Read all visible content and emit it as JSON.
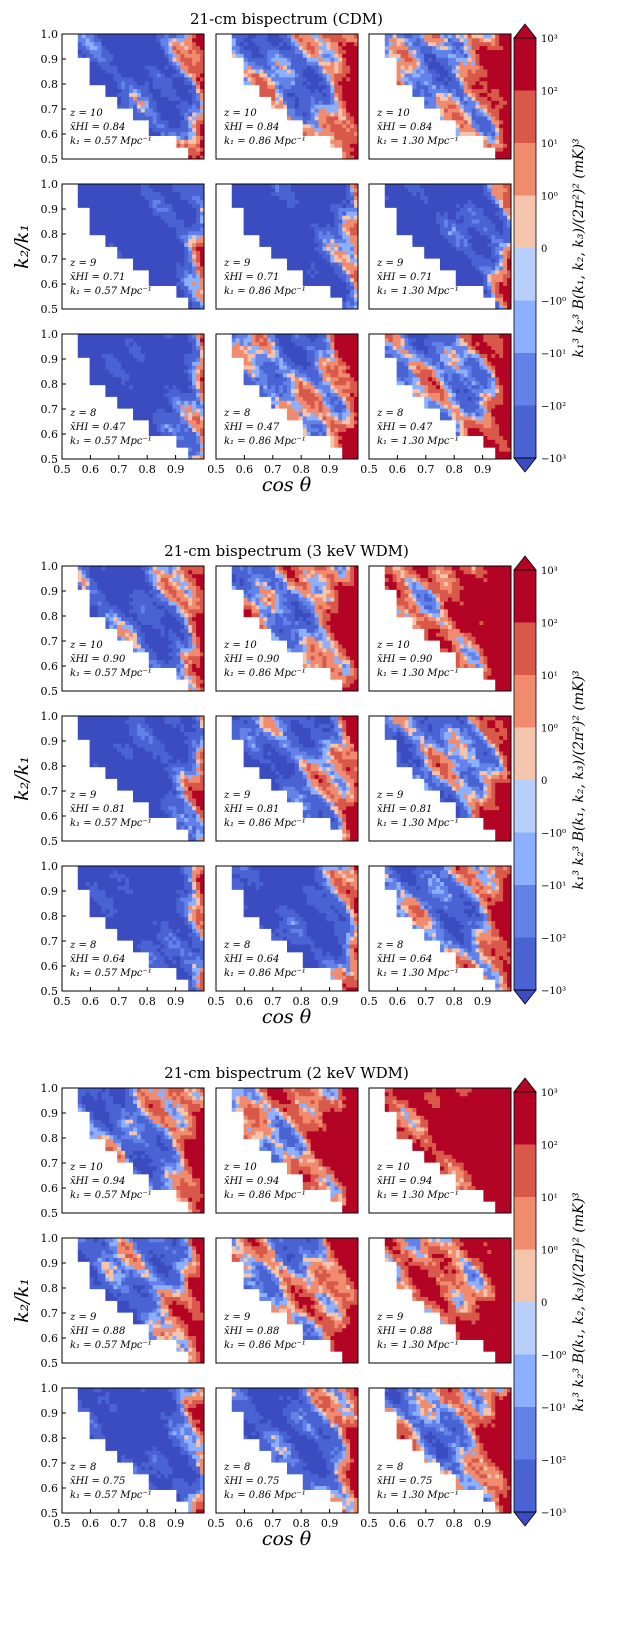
{
  "colors": {
    "neg3": "#3b4cc0",
    "neg2": "#4a63d3",
    "neg1": "#6282ea",
    "neg0": "#8db0fe",
    "zero": "#b7cff9",
    "pos0": "#f4c4ad",
    "pos1": "#f08b6e",
    "pos2": "#d8584a",
    "pos3": "#b40426",
    "white": "#ffffff"
  },
  "blocks": [
    {
      "title": "21-cm bispectrum (CDM)",
      "ylabel": "k₂/k₁",
      "xlabel": "cos θ",
      "cbar_label": "k₁³ k₂³ B(k₁, k₂, k₃)/(2π²)² (mK)³",
      "cbar_ticks": [
        "10³",
        "10²",
        "10¹",
        "10⁰",
        "0",
        "−10⁰",
        "−10¹",
        "−10²",
        "−10³"
      ],
      "panels": [
        {
          "z": "z = 10",
          "xhi": "x̄HI = 0.84",
          "k1": "k₁ = 0.57 Mpc⁻¹"
        },
        {
          "z": "z = 10",
          "xhi": "x̄HI = 0.84",
          "k1": "k₁ = 0.86 Mpc⁻¹"
        },
        {
          "z": "z = 10",
          "xhi": "x̄HI = 0.84",
          "k1": "k₁ = 1.30 Mpc⁻¹"
        },
        {
          "z": "z = 9",
          "xhi": "x̄HI = 0.71",
          "k1": "k₁ = 0.57 Mpc⁻¹"
        },
        {
          "z": "z = 9",
          "xhi": "x̄HI = 0.71",
          "k1": "k₁ = 0.86 Mpc⁻¹"
        },
        {
          "z": "z = 9",
          "xhi": "x̄HI = 0.71",
          "k1": "k₁ = 1.30 Mpc⁻¹"
        },
        {
          "z": "z = 8",
          "xhi": "x̄HI = 0.47",
          "k1": "k₁ = 0.57 Mpc⁻¹"
        },
        {
          "z": "z = 8",
          "xhi": "x̄HI = 0.47",
          "k1": "k₁ = 0.86 Mpc⁻¹"
        },
        {
          "z": "z = 8",
          "xhi": "x̄HI = 0.47",
          "k1": "k₁ = 1.30 Mpc⁻¹"
        }
      ]
    },
    {
      "title": "21-cm bispectrum (3 keV WDM)",
      "ylabel": "k₂/k₁",
      "xlabel": "cos θ",
      "cbar_label": "k₁³ k₂³ B(k₁, k₂, k₃)/(2π²)² (mK)³",
      "cbar_ticks": [
        "10³",
        "10²",
        "10¹",
        "10⁰",
        "0",
        "−10⁰",
        "−10¹",
        "−10²",
        "−10³"
      ],
      "panels": [
        {
          "z": "z = 10",
          "xhi": "x̄HI = 0.90",
          "k1": "k₁ = 0.57 Mpc⁻¹"
        },
        {
          "z": "z = 10",
          "xhi": "x̄HI = 0.90",
          "k1": "k₁ = 0.86 Mpc⁻¹"
        },
        {
          "z": "z = 10",
          "xhi": "x̄HI = 0.90",
          "k1": "k₁ = 1.30 Mpc⁻¹"
        },
        {
          "z": "z = 9",
          "xhi": "x̄HI = 0.81",
          "k1": "k₁ = 0.57 Mpc⁻¹"
        },
        {
          "z": "z = 9",
          "xhi": "x̄HI = 0.81",
          "k1": "k₁ = 0.86 Mpc⁻¹"
        },
        {
          "z": "z = 9",
          "xhi": "x̄HI = 0.81",
          "k1": "k₁ = 1.30 Mpc⁻¹"
        },
        {
          "z": "z = 8",
          "xhi": "x̄HI = 0.64",
          "k1": "k₁ = 0.57 Mpc⁻¹"
        },
        {
          "z": "z = 8",
          "xhi": "x̄HI = 0.64",
          "k1": "k₁ = 0.86 Mpc⁻¹"
        },
        {
          "z": "z = 8",
          "xhi": "x̄HI = 0.64",
          "k1": "k₁ = 1.30 Mpc⁻¹"
        }
      ]
    },
    {
      "title": "21-cm bispectrum (2 keV WDM)",
      "ylabel": "k₂/k₁",
      "xlabel": "cos θ",
      "cbar_label": "k₁³ k₂³ B(k₁, k₂, k₃)/(2π²)² (mK)³",
      "cbar_ticks": [
        "10³",
        "10²",
        "10¹",
        "10⁰",
        "0",
        "−10⁰",
        "−10¹",
        "−10²",
        "−10³"
      ],
      "panels": [
        {
          "z": "z = 10",
          "xhi": "x̄HI = 0.94",
          "k1": "k₁ = 0.57 Mpc⁻¹"
        },
        {
          "z": "z = 10",
          "xhi": "x̄HI = 0.94",
          "k1": "k₁ = 0.86 Mpc⁻¹"
        },
        {
          "z": "z = 10",
          "xhi": "x̄HI = 0.94",
          "k1": "k₁ = 1.30 Mpc⁻¹"
        },
        {
          "z": "z = 9",
          "xhi": "x̄HI = 0.88",
          "k1": "k₁ = 0.57 Mpc⁻¹"
        },
        {
          "z": "z = 9",
          "xhi": "x̄HI = 0.88",
          "k1": "k₁ = 0.86 Mpc⁻¹"
        },
        {
          "z": "z = 9",
          "xhi": "x̄HI = 0.88",
          "k1": "k₁ = 1.30 Mpc⁻¹"
        },
        {
          "z": "z = 8",
          "xhi": "x̄HI = 0.75",
          "k1": "k₁ = 0.57 Mpc⁻¹"
        },
        {
          "z": "z = 8",
          "xhi": "x̄HI = 0.75",
          "k1": "k₁ = 0.86 Mpc⁻¹"
        },
        {
          "z": "z = 8",
          "xhi": "x̄HI = 0.75",
          "k1": "k₁ = 1.30 Mpc⁻¹"
        }
      ]
    }
  ],
  "chart_data": [
    {
      "type": "heatmap",
      "title": "21-cm bispectrum (CDM)",
      "xlabel": "cos θ",
      "ylabel": "k₂/k₁",
      "xlim": [
        0.5,
        1.0
      ],
      "ylim": [
        0.5,
        1.0
      ],
      "xticks": [
        "0.5",
        "0.6",
        "0.7",
        "0.8",
        "0.9"
      ],
      "yticks": [
        "0.5",
        "0.6",
        "0.7",
        "0.8",
        "0.9",
        "1.0"
      ],
      "colorbar": "symmetric log, −10³ to 10³ (mK)³",
      "panels_grid": "3 rows (z = 10, 9, 8) × 3 columns (k₁ = 0.57, 0.86, 1.30 Mpc⁻¹)",
      "dominant_sign": [
        [
          "mixed",
          "mixed",
          "mostly negative, positive near cos θ ≈ 1"
        ],
        [
          "negative",
          "negative",
          "negative"
        ],
        [
          "negative",
          "mixed",
          "mixed"
        ]
      ]
    },
    {
      "type": "heatmap",
      "title": "21-cm bispectrum (3 keV WDM)",
      "xlabel": "cos θ",
      "ylabel": "k₂/k₁",
      "xlim": [
        0.5,
        1.0
      ],
      "ylim": [
        0.5,
        1.0
      ],
      "xticks": [
        "0.5",
        "0.6",
        "0.7",
        "0.8",
        "0.9"
      ],
      "yticks": [
        "0.5",
        "0.6",
        "0.7",
        "0.8",
        "0.9",
        "1.0"
      ],
      "colorbar": "symmetric log, −10³ to 10³ (mK)³",
      "dominant_sign": [
        [
          "mixed",
          "mixed",
          "mostly positive"
        ],
        [
          "negative",
          "mixed",
          "mixed"
        ],
        [
          "negative",
          "negative",
          "mixed"
        ]
      ]
    },
    {
      "type": "heatmap",
      "title": "21-cm bispectrum (2 keV WDM)",
      "xlabel": "cos θ",
      "ylabel": "k₂/k₁",
      "xlim": [
        0.5,
        1.0
      ],
      "ylim": [
        0.5,
        1.0
      ],
      "xticks": [
        "0.5",
        "0.6",
        "0.7",
        "0.8",
        "0.9"
      ],
      "yticks": [
        "0.5",
        "0.6",
        "0.7",
        "0.8",
        "0.9",
        "1.0"
      ],
      "colorbar": "symmetric log, −10³ to 10³ (mK)³",
      "dominant_sign": [
        [
          "mixed",
          "mostly positive",
          "positive"
        ],
        [
          "mixed",
          "mixed",
          "mostly positive"
        ],
        [
          "negative",
          "mixed",
          "mixed"
        ]
      ]
    }
  ],
  "layout_seed": {
    "warm": [
      [
        0.2,
        0.45,
        0.95
      ],
      [
        0.02,
        0.05,
        0.08
      ],
      [
        0.05,
        0.45,
        0.5
      ],
      [
        0.25,
        0.55,
        0.8
      ],
      [
        0.12,
        0.3,
        0.4
      ],
      [
        0.08,
        0.12,
        0.45
      ],
      [
        0.45,
        0.7,
        0.98
      ],
      [
        0.4,
        0.55,
        0.75
      ],
      [
        0.1,
        0.3,
        0.55
      ]
    ]
  }
}
